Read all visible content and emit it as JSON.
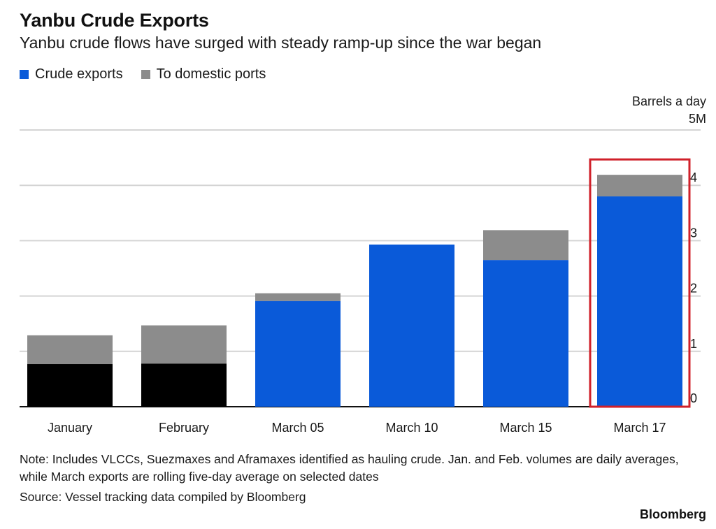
{
  "title": "Yanbu Crude Exports",
  "subtitle": "Yanbu crude flows have surged with steady ramp-up since the war began",
  "legend": [
    {
      "label": "Crude exports",
      "color": "#0a5ad9"
    },
    {
      "label": "To domestic ports",
      "color": "#8c8c8c"
    }
  ],
  "unit_label": "Barrels a day",
  "note": "Note: Includes VLCCs, Suezmaxes and Aframaxes identified as hauling crude. Jan. and Feb. volumes are daily averages, while March exports are rolling five-day average on selected dates",
  "source": "Source: Vessel tracking data compiled by Bloomberg",
  "brand": "Bloomberg",
  "colors": {
    "crude_exports": "#0a5ad9",
    "domestic": "#8c8c8c",
    "prewar_exports": "#000000",
    "highlight_box": "#d0202a",
    "gridline": "#d4d4d4",
    "axis": "#111111"
  },
  "chart_data": {
    "type": "bar",
    "stacked": true,
    "categories": [
      "January",
      "February",
      "March 05",
      "March 10",
      "March 15",
      "March 17"
    ],
    "series": [
      {
        "name": "Crude exports",
        "values": [
          0.77,
          0.78,
          1.91,
          2.93,
          2.65,
          3.8
        ]
      },
      {
        "name": "To domestic ports",
        "values": [
          0.52,
          0.69,
          0.14,
          0.0,
          0.54,
          0.39
        ]
      }
    ],
    "bar_colors_exports": [
      "#000000",
      "#000000",
      "#0a5ad9",
      "#0a5ad9",
      "#0a5ad9",
      "#0a5ad9"
    ],
    "highlighted_category": "March 17",
    "ylim": [
      0,
      5
    ],
    "yticks": [
      0,
      1,
      2,
      3,
      4,
      5
    ],
    "ytick_labels": [
      "0",
      "1",
      "2",
      "3",
      "4",
      "5M"
    ],
    "y_axis_side": "right",
    "grid": true
  }
}
